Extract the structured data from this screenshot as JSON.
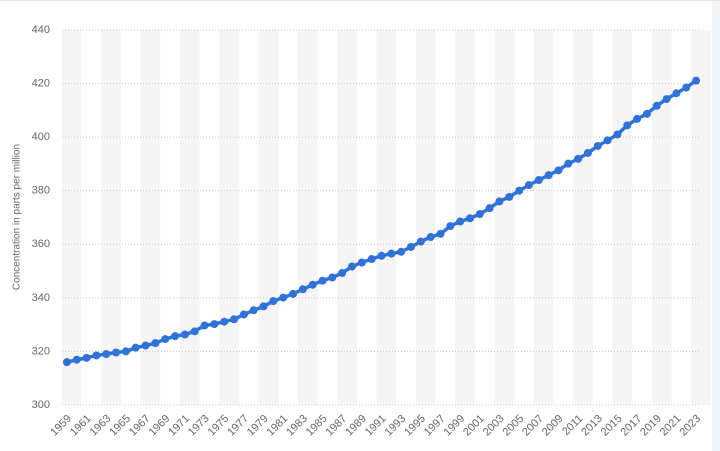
{
  "chart_data": {
    "type": "line",
    "y_label": "Concentration in parts per million",
    "categories": [
      "1959",
      null,
      "1961",
      null,
      "1963",
      null,
      "1965",
      null,
      "1967",
      null,
      "1969",
      null,
      "1971",
      null,
      "1973",
      null,
      "1975",
      null,
      "1977",
      null,
      "1979",
      null,
      "1981",
      null,
      "1983",
      null,
      "1985",
      null,
      "1987",
      null,
      "1989",
      null,
      "1991",
      null,
      "1993",
      null,
      "1995",
      null,
      "1997",
      null,
      "1999",
      null,
      "2001",
      null,
      "2003",
      null,
      "2005",
      null,
      "2007",
      null,
      "2009",
      null,
      "2011",
      null,
      "2013",
      null,
      "2015",
      null,
      "2017",
      null,
      "2019",
      null,
      "2021",
      null,
      "2023"
    ],
    "series": [
      {
        "color": "#2f72d9",
        "values": [
          316.0,
          316.9,
          317.6,
          318.5,
          319.0,
          319.6,
          320.0,
          321.4,
          322.2,
          323.1,
          324.6,
          325.7,
          326.3,
          327.5,
          329.7,
          330.2,
          331.1,
          332.0,
          333.8,
          335.4,
          336.8,
          338.8,
          340.1,
          341.5,
          343.2,
          344.9,
          346.4,
          347.6,
          349.3,
          351.7,
          353.2,
          354.5,
          355.7,
          356.5,
          357.2,
          359.0,
          361.0,
          362.7,
          363.9,
          366.8,
          368.5,
          369.7,
          371.3,
          373.5,
          376.0,
          377.7,
          380.0,
          382.1,
          384.0,
          385.8,
          387.6,
          390.1,
          391.9,
          394.1,
          396.7,
          398.8,
          401.0,
          404.4,
          406.8,
          408.7,
          411.7,
          414.2,
          416.4,
          418.5,
          421.1
        ]
      }
    ],
    "ylim": [
      300,
      440
    ],
    "yticks": [
      300,
      320,
      340,
      360,
      380,
      400,
      420,
      440
    ],
    "grid": true
  }
}
